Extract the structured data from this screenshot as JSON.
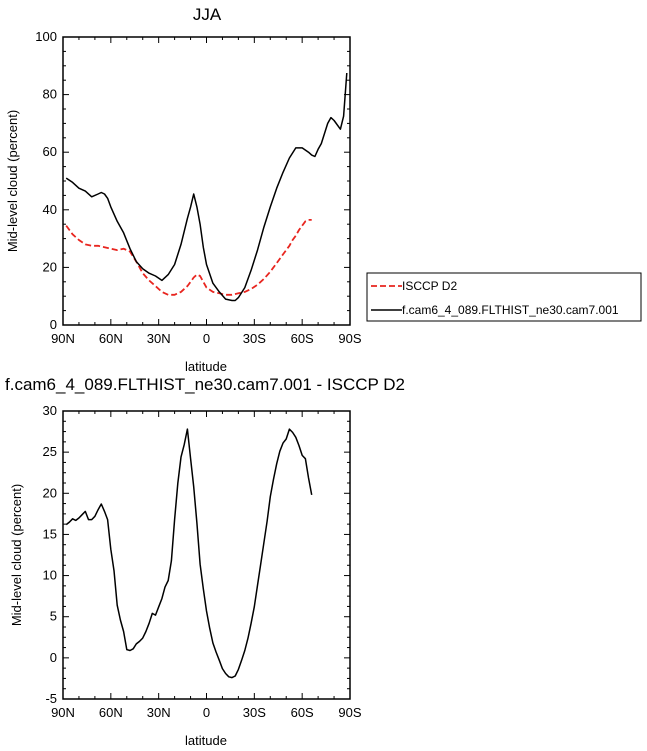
{
  "chart_data": [
    {
      "type": "line",
      "title": "JJA",
      "xlabel": "latitude",
      "ylabel": "Mid-level cloud (percent)",
      "xlim": [
        -90,
        90
      ],
      "ylim": [
        0,
        100
      ],
      "x_ticks": [
        -90,
        -60,
        -30,
        0,
        30,
        60,
        90
      ],
      "x_tick_labels": [
        "90N",
        "60N",
        "30N",
        "0",
        "30S",
        "60S",
        "90S"
      ],
      "y_ticks": [
        0,
        20,
        40,
        60,
        80,
        100
      ],
      "y_tick_labels": [
        "0",
        "20",
        "40",
        "60",
        "80",
        "100"
      ],
      "legend": {
        "placement": "right",
        "entries": [
          "ISCCP D2",
          "f.cam6_4_089.FLTHIST_ne30.cam7.001"
        ]
      },
      "series": [
        {
          "name": "ISCCP D2",
          "color": "#e8251f",
          "dash": true,
          "x": [
            -88,
            -84,
            -80,
            -76,
            -72,
            -68,
            -64,
            -60,
            -56,
            -52,
            -48,
            -44,
            -40,
            -36,
            -32,
            -28,
            -24,
            -20,
            -16,
            -12,
            -10,
            -8,
            -6,
            -4,
            -2,
            0,
            4,
            8,
            12,
            16,
            20,
            24,
            28,
            32,
            36,
            40,
            44,
            48,
            52,
            54,
            56,
            58,
            60,
            62,
            64,
            66
          ],
          "y": [
            34.5,
            31.5,
            29.5,
            28,
            27.5,
            27.5,
            27,
            26.5,
            26,
            26.5,
            25.5,
            22,
            18,
            15.5,
            13.5,
            11.5,
            10.5,
            10.5,
            11.5,
            13.5,
            15,
            16.5,
            17.5,
            17,
            15,
            13,
            11.5,
            11,
            10.5,
            10.5,
            11,
            11.5,
            12.5,
            14,
            16,
            18.5,
            21.5,
            24.5,
            27.5,
            29.5,
            31,
            33,
            34.5,
            36,
            36.5,
            36.5
          ]
        },
        {
          "name": "f.cam6_4_089.FLTHIST_ne30.cam7.001",
          "color": "#000000",
          "dash": false,
          "x": [
            -88,
            -84,
            -80,
            -76,
            -72,
            -68,
            -66,
            -64,
            -62,
            -60,
            -56,
            -52,
            -48,
            -44,
            -40,
            -36,
            -32,
            -28,
            -24,
            -20,
            -16,
            -12,
            -10,
            -8,
            -6,
            -4,
            -2,
            0,
            4,
            8,
            12,
            16,
            18,
            20,
            24,
            28,
            32,
            36,
            40,
            44,
            48,
            52,
            56,
            60,
            64,
            66,
            68,
            70,
            72,
            76,
            78,
            80,
            84,
            86,
            88
          ],
          "y": [
            51,
            49.5,
            47.5,
            46.5,
            44.5,
            45.5,
            46,
            45.5,
            44,
            41,
            36,
            32,
            26.5,
            22,
            19.5,
            18,
            17,
            15.5,
            17.5,
            21,
            28,
            37,
            41,
            45.5,
            41,
            35,
            27,
            21,
            14.5,
            11.5,
            9,
            8.5,
            8.5,
            9.5,
            13,
            19,
            26,
            34,
            41,
            47.5,
            53,
            58,
            61.5,
            61.5,
            60,
            59,
            58.5,
            61,
            63,
            70,
            72,
            71,
            68,
            72.5,
            87.5
          ]
        }
      ]
    },
    {
      "type": "line",
      "title": "f.cam6_4_089.FLTHIST_ne30.cam7.001 - ISCCP D2",
      "xlabel": "latitude",
      "ylabel": "Mid-level cloud (percent)",
      "xlim": [
        -90,
        90
      ],
      "ylim": [
        -5,
        30
      ],
      "x_ticks": [
        -90,
        -60,
        -30,
        0,
        30,
        60,
        90
      ],
      "x_tick_labels": [
        "90N",
        "60N",
        "30N",
        "0",
        "30S",
        "60S",
        "90S"
      ],
      "y_ticks": [
        -5,
        0,
        5,
        10,
        15,
        20,
        25,
        30
      ],
      "y_tick_labels": [
        "-5",
        "0",
        "5",
        "10",
        "15",
        "20",
        "25",
        "30"
      ],
      "series": [
        {
          "color": "#000000",
          "dash": false,
          "x": [
            -88,
            -86,
            -84,
            -82,
            -80,
            -78,
            -76,
            -74,
            -72,
            -70,
            -68,
            -66,
            -64,
            -62,
            -60,
            -58,
            -56,
            -54,
            -52,
            -50,
            -48,
            -46,
            -44,
            -42,
            -40,
            -38,
            -36,
            -34,
            -32,
            -30,
            -28,
            -26,
            -24,
            -22,
            -20,
            -18,
            -16,
            -14,
            -12,
            -10,
            -8,
            -6,
            -4,
            -2,
            0,
            2,
            4,
            6,
            8,
            10,
            12,
            14,
            16,
            18,
            20,
            22,
            24,
            26,
            28,
            30,
            32,
            34,
            36,
            38,
            40,
            42,
            44,
            46,
            48,
            50,
            52,
            54,
            56,
            58,
            60,
            62,
            64,
            66
          ],
          "y": [
            16.2,
            16.5,
            16.9,
            16.7,
            17.0,
            17.4,
            17.8,
            16.8,
            16.8,
            17.2,
            18.0,
            18.7,
            17.8,
            16.8,
            13.2,
            10.6,
            6.4,
            4.6,
            3.2,
            1.0,
            0.9,
            1.1,
            1.7,
            2.0,
            2.4,
            3.2,
            4.2,
            5.4,
            5.2,
            6.2,
            7.2,
            8.6,
            9.4,
            11.8,
            16.8,
            21.2,
            24.4,
            25.9,
            27.8,
            24.2,
            20.8,
            16.4,
            11.4,
            8.4,
            5.7,
            3.6,
            1.8,
            0.7,
            -0.3,
            -1.3,
            -1.9,
            -2.3,
            -2.4,
            -2.2,
            -1.4,
            -0.3,
            0.9,
            2.4,
            4.2,
            6.2,
            8.8,
            11.4,
            14.0,
            16.6,
            19.6,
            21.7,
            23.6,
            25.1,
            26.1,
            26.6,
            27.8,
            27.4,
            26.8,
            25.8,
            24.6,
            24.2,
            21.9,
            19.8
          ]
        }
      ]
    }
  ]
}
